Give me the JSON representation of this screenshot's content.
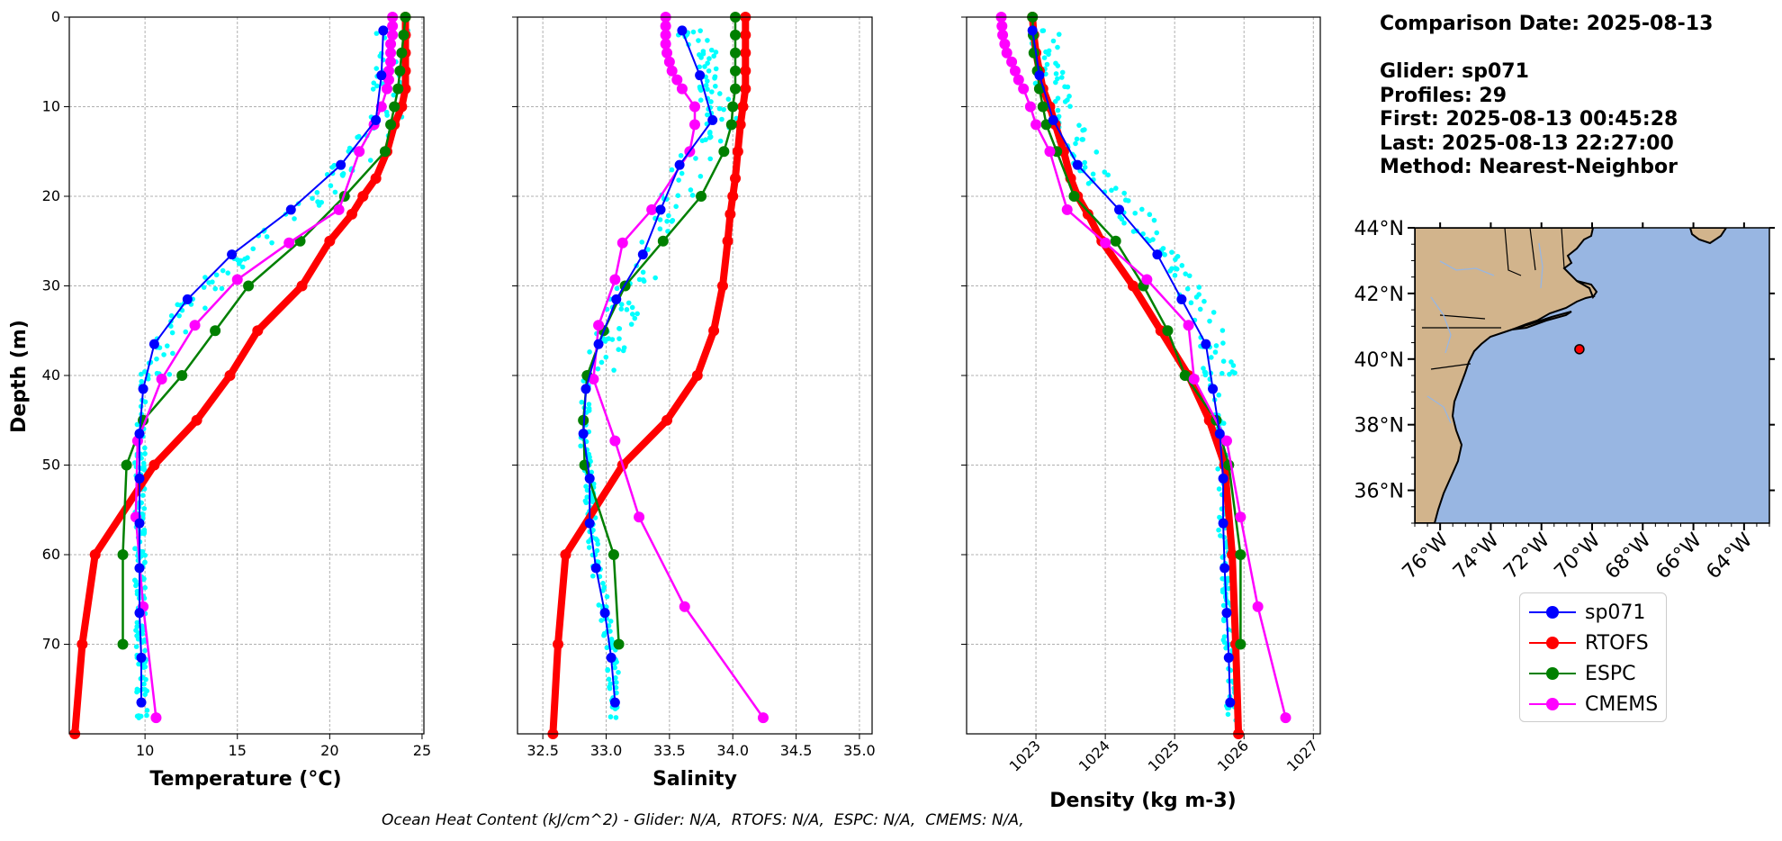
{
  "info": {
    "comparison_date": "Comparison Date: 2025-08-13",
    "glider": "Glider: sp071",
    "profiles": "Profiles: 29",
    "first": "First: 2025-08-13 00:45:28",
    "last": "Last: 2025-08-13 22:27:00",
    "method": "Method: Nearest-Neighbor"
  },
  "footer": "Ocean Heat Content (kJ/cm^2) - Glider: N/A,  RTOFS: N/A,  ESPC: N/A,  CMEMS: N/A,",
  "colors": {
    "sp071": "#0000ff",
    "RTOFS": "#ff0000",
    "ESPC": "#008000",
    "CMEMS": "#ff00ff",
    "scatter": "#00ffff",
    "land": "#d2b48c",
    "ocean": "#98b6e2"
  },
  "legend": [
    {
      "name": "sp071",
      "color": "#0000ff"
    },
    {
      "name": "RTOFS",
      "color": "#ff0000"
    },
    {
      "name": "ESPC",
      "color": "#008000"
    },
    {
      "name": "CMEMS",
      "color": "#ff00ff"
    }
  ],
  "chart_data": [
    {
      "type": "line",
      "xlabel": "Temperature (°C)",
      "ylabel": "Depth (m)",
      "xlim": [
        5.9,
        25.1
      ],
      "ylim": [
        80,
        0
      ],
      "xticks": [
        10,
        15,
        20,
        25
      ],
      "yticks": [
        0,
        10,
        20,
        30,
        40,
        50,
        60,
        70
      ],
      "grid": true,
      "series": [
        {
          "name": "sp071",
          "line_width": "thin",
          "points": [
            [
              22.9,
              1.5
            ],
            [
              22.8,
              6.5
            ],
            [
              22.5,
              11.5
            ],
            [
              20.6,
              16.5
            ],
            [
              17.9,
              21.5
            ],
            [
              14.7,
              26.5
            ],
            [
              12.3,
              31.5
            ],
            [
              10.5,
              36.5
            ],
            [
              9.9,
              41.5
            ],
            [
              9.7,
              46.5
            ],
            [
              9.7,
              51.5
            ],
            [
              9.7,
              56.5
            ],
            [
              9.7,
              61.5
            ],
            [
              9.7,
              66.5
            ],
            [
              9.8,
              71.5
            ],
            [
              9.8,
              76.5
            ]
          ]
        },
        {
          "name": "RTOFS",
          "line_width": "thick",
          "points": [
            [
              24.1,
              0
            ],
            [
              24.1,
              2
            ],
            [
              24.1,
              4
            ],
            [
              24.1,
              6
            ],
            [
              24.1,
              8
            ],
            [
              23.9,
              10
            ],
            [
              23.5,
              12
            ],
            [
              23.1,
              15
            ],
            [
              22.5,
              18
            ],
            [
              21.8,
              20
            ],
            [
              21.2,
              22
            ],
            [
              20,
              25
            ],
            [
              18.5,
              30
            ],
            [
              16.1,
              35
            ],
            [
              14.6,
              40
            ],
            [
              12.8,
              45
            ],
            [
              10.5,
              50
            ],
            [
              7.3,
              60
            ],
            [
              6.6,
              70
            ],
            [
              6.2,
              80
            ]
          ]
        },
        {
          "name": "ESPC",
          "line_width": "medium",
          "points": [
            [
              24.1,
              0
            ],
            [
              24.0,
              2
            ],
            [
              23.9,
              4
            ],
            [
              23.8,
              6
            ],
            [
              23.7,
              8
            ],
            [
              23.5,
              10
            ],
            [
              23.3,
              12
            ],
            [
              23.0,
              15
            ],
            [
              20.8,
              20
            ],
            [
              18.4,
              25
            ],
            [
              15.6,
              30
            ],
            [
              13.8,
              35
            ],
            [
              12.0,
              40
            ],
            [
              9.9,
              45
            ],
            [
              9.0,
              50
            ],
            [
              8.8,
              60
            ],
            [
              8.8,
              70
            ]
          ]
        },
        {
          "name": "CMEMS",
          "line_width": "medium",
          "points": [
            [
              23.4,
              0
            ],
            [
              23.4,
              1
            ],
            [
              23.4,
              2
            ],
            [
              23.3,
              3
            ],
            [
              23.3,
              4
            ],
            [
              23.3,
              5
            ],
            [
              23.2,
              6
            ],
            [
              23.2,
              7
            ],
            [
              23.1,
              8
            ],
            [
              22.8,
              10
            ],
            [
              22.4,
              12
            ],
            [
              21.6,
              15
            ],
            [
              20.5,
              21.5
            ],
            [
              17.8,
              25.2
            ],
            [
              15.0,
              29.3
            ],
            [
              12.7,
              34.4
            ],
            [
              10.9,
              40.4
            ],
            [
              9.6,
              47.3
            ],
            [
              9.5,
              55.8
            ],
            [
              9.9,
              65.8
            ],
            [
              10.6,
              78.2
            ]
          ]
        }
      ]
    },
    {
      "type": "line",
      "xlabel": "Salinity",
      "xlim": [
        32.3,
        35.1
      ],
      "ylim": [
        80,
        0
      ],
      "xticks": [
        32.5,
        33.0,
        33.5,
        34.0,
        34.5,
        35.0
      ],
      "grid": true,
      "series": [
        {
          "name": "sp071",
          "line_width": "thin",
          "points": [
            [
              33.6,
              1.5
            ],
            [
              33.74,
              6.5
            ],
            [
              33.84,
              11.5
            ],
            [
              33.58,
              16.5
            ],
            [
              33.43,
              21.5
            ],
            [
              33.29,
              26.5
            ],
            [
              33.08,
              31.5
            ],
            [
              32.94,
              36.5
            ],
            [
              32.84,
              41.5
            ],
            [
              32.82,
              46.5
            ],
            [
              32.87,
              51.5
            ],
            [
              32.87,
              56.5
            ],
            [
              32.92,
              61.5
            ],
            [
              32.99,
              66.5
            ],
            [
              33.04,
              71.5
            ],
            [
              33.07,
              76.5
            ]
          ]
        },
        {
          "name": "RTOFS",
          "line_width": "thick",
          "points": [
            [
              34.1,
              0
            ],
            [
              34.1,
              2
            ],
            [
              34.1,
              4
            ],
            [
              34.1,
              6
            ],
            [
              34.1,
              8
            ],
            [
              34.08,
              10
            ],
            [
              34.06,
              12
            ],
            [
              34.04,
              15
            ],
            [
              34.02,
              18
            ],
            [
              34.0,
              20
            ],
            [
              33.98,
              22
            ],
            [
              33.96,
              25
            ],
            [
              33.92,
              30
            ],
            [
              33.85,
              35
            ],
            [
              33.72,
              40
            ],
            [
              33.48,
              45
            ],
            [
              33.13,
              50
            ],
            [
              32.68,
              60
            ],
            [
              32.62,
              70
            ],
            [
              32.58,
              80
            ]
          ]
        },
        {
          "name": "ESPC",
          "line_width": "medium",
          "points": [
            [
              34.02,
              0
            ],
            [
              34.02,
              2
            ],
            [
              34.02,
              4
            ],
            [
              34.02,
              6
            ],
            [
              34.02,
              8
            ],
            [
              34.0,
              10
            ],
            [
              33.99,
              12
            ],
            [
              33.93,
              15
            ],
            [
              33.75,
              20
            ],
            [
              33.45,
              25
            ],
            [
              33.15,
              30
            ],
            [
              32.98,
              35
            ],
            [
              32.85,
              40
            ],
            [
              32.82,
              45
            ],
            [
              32.83,
              50
            ],
            [
              33.06,
              60
            ],
            [
              33.1,
              70
            ]
          ]
        },
        {
          "name": "CMEMS",
          "line_width": "medium",
          "points": [
            [
              33.47,
              0
            ],
            [
              33.47,
              1
            ],
            [
              33.47,
              2
            ],
            [
              33.47,
              3
            ],
            [
              33.48,
              4
            ],
            [
              33.5,
              5
            ],
            [
              33.52,
              6
            ],
            [
              33.56,
              7
            ],
            [
              33.6,
              8
            ],
            [
              33.7,
              10
            ],
            [
              33.7,
              12
            ],
            [
              33.66,
              15
            ],
            [
              33.36,
              21.5
            ],
            [
              33.13,
              25.2
            ],
            [
              33.07,
              29.3
            ],
            [
              32.94,
              34.4
            ],
            [
              32.9,
              40.4
            ],
            [
              33.07,
              47.3
            ],
            [
              33.26,
              55.8
            ],
            [
              33.62,
              65.8
            ],
            [
              34.24,
              78.2
            ]
          ]
        }
      ]
    },
    {
      "type": "line",
      "xlabel": "Density (kg m-3)",
      "xlim": [
        1022.0,
        1027.1
      ],
      "ylim": [
        80,
        0
      ],
      "xticks": [
        1023,
        1024,
        1025,
        1026,
        1027
      ],
      "grid": true,
      "series": [
        {
          "name": "sp071",
          "line_width": "thin",
          "points": [
            [
              1022.95,
              1.5
            ],
            [
              1023.05,
              6.5
            ],
            [
              1023.25,
              11.5
            ],
            [
              1023.6,
              16.5
            ],
            [
              1024.2,
              21.5
            ],
            [
              1024.75,
              26.5
            ],
            [
              1025.1,
              31.5
            ],
            [
              1025.45,
              36.5
            ],
            [
              1025.55,
              41.5
            ],
            [
              1025.65,
              46.5
            ],
            [
              1025.7,
              51.5
            ],
            [
              1025.7,
              56.5
            ],
            [
              1025.72,
              61.5
            ],
            [
              1025.75,
              66.5
            ],
            [
              1025.78,
              71.5
            ],
            [
              1025.8,
              76.5
            ]
          ]
        },
        {
          "name": "RTOFS",
          "line_width": "thick",
          "points": [
            [
              1022.95,
              0
            ],
            [
              1022.97,
              2
            ],
            [
              1023.0,
              4
            ],
            [
              1023.05,
              6
            ],
            [
              1023.1,
              8
            ],
            [
              1023.2,
              10
            ],
            [
              1023.28,
              12
            ],
            [
              1023.4,
              15
            ],
            [
              1023.5,
              18
            ],
            [
              1023.6,
              20
            ],
            [
              1023.75,
              22
            ],
            [
              1023.95,
              25
            ],
            [
              1024.4,
              30
            ],
            [
              1024.8,
              35
            ],
            [
              1025.2,
              40
            ],
            [
              1025.5,
              45
            ],
            [
              1025.72,
              50
            ],
            [
              1025.83,
              60
            ],
            [
              1025.88,
              70
            ],
            [
              1025.92,
              80
            ]
          ]
        },
        {
          "name": "ESPC",
          "line_width": "medium",
          "points": [
            [
              1022.95,
              0
            ],
            [
              1022.96,
              2
            ],
            [
              1022.97,
              4
            ],
            [
              1023.02,
              6
            ],
            [
              1023.05,
              8
            ],
            [
              1023.1,
              10
            ],
            [
              1023.15,
              12
            ],
            [
              1023.3,
              15
            ],
            [
              1023.55,
              20
            ],
            [
              1024.15,
              25
            ],
            [
              1024.55,
              30
            ],
            [
              1024.9,
              35
            ],
            [
              1025.15,
              40
            ],
            [
              1025.6,
              45
            ],
            [
              1025.78,
              50
            ],
            [
              1025.95,
              60
            ],
            [
              1025.95,
              70
            ]
          ]
        },
        {
          "name": "CMEMS",
          "line_width": "medium",
          "points": [
            [
              1022.5,
              0
            ],
            [
              1022.51,
              1
            ],
            [
              1022.52,
              2
            ],
            [
              1022.55,
              3
            ],
            [
              1022.58,
              4
            ],
            [
              1022.65,
              5
            ],
            [
              1022.7,
              6
            ],
            [
              1022.75,
              7
            ],
            [
              1022.82,
              8
            ],
            [
              1022.92,
              10
            ],
            [
              1023.0,
              12
            ],
            [
              1023.2,
              15
            ],
            [
              1023.45,
              21.5
            ],
            [
              1024.0,
              25.2
            ],
            [
              1024.6,
              29.3
            ],
            [
              1025.2,
              34.4
            ],
            [
              1025.28,
              40.4
            ],
            [
              1025.75,
              47.3
            ],
            [
              1025.95,
              55.8
            ],
            [
              1026.2,
              65.8
            ],
            [
              1026.6,
              78.2
            ]
          ]
        }
      ]
    },
    {
      "type": "map",
      "xticks": [
        "76°W",
        "74°W",
        "72°W",
        "70°W",
        "68°W",
        "66°W",
        "64°W"
      ],
      "yticks": [
        "44°N",
        "42°N",
        "40°N",
        "38°N",
        "36°N"
      ],
      "lon_range": [
        -77,
        -63
      ],
      "lat_range": [
        35,
        44
      ],
      "marker": {
        "lon": -70.5,
        "lat": 40.3
      }
    }
  ]
}
